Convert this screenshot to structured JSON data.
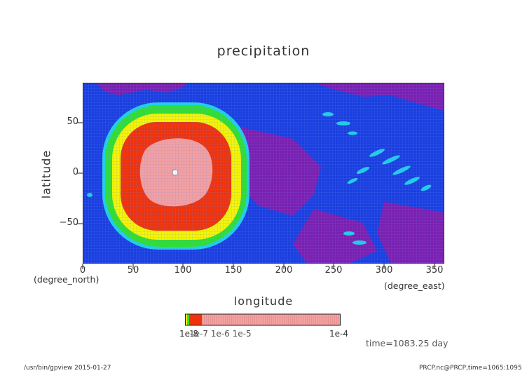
{
  "title": "precipitation",
  "chart_data": {
    "type": "heatmap",
    "title": "precipitation",
    "xlabel": "longitude",
    "ylabel": "latitude",
    "x_unit": "(degree_east)",
    "y_unit": "(degree_north)",
    "xlim": [
      0,
      360
    ],
    "ylim": [
      -90,
      90
    ],
    "x_ticks": [
      "0",
      "50",
      "100",
      "150",
      "200",
      "250",
      "300",
      "350"
    ],
    "y_ticks": [
      "50",
      "0",
      "−50"
    ],
    "contour_levels": [
      "1e-8",
      "1e-7",
      "1e-6",
      "1e-5",
      "1e-4"
    ],
    "colorbar_labels": {
      "left": "1e-8",
      "right": "1e-4",
      "overlapping": "1e-7 1e-6 1e-5"
    },
    "colors": {
      "ocean": "#1a3fe0",
      "purple": "#7b1fb0",
      "cyan": "#20d0e8",
      "green": "#30e030",
      "yellow": "#f5f500",
      "red": "#f0320a",
      "pink": "#f4a0a0"
    },
    "features": [
      {
        "name": "max region",
        "center_lon": 90,
        "center_lat": 0,
        "level": "1e-4"
      }
    ]
  },
  "annotation": {
    "time": "time=1083.25 day"
  },
  "footer": {
    "left": "/usr/bin/gpview  2015-01-27",
    "right": "PRCP.nc@PRCP,time=1065:1095"
  }
}
